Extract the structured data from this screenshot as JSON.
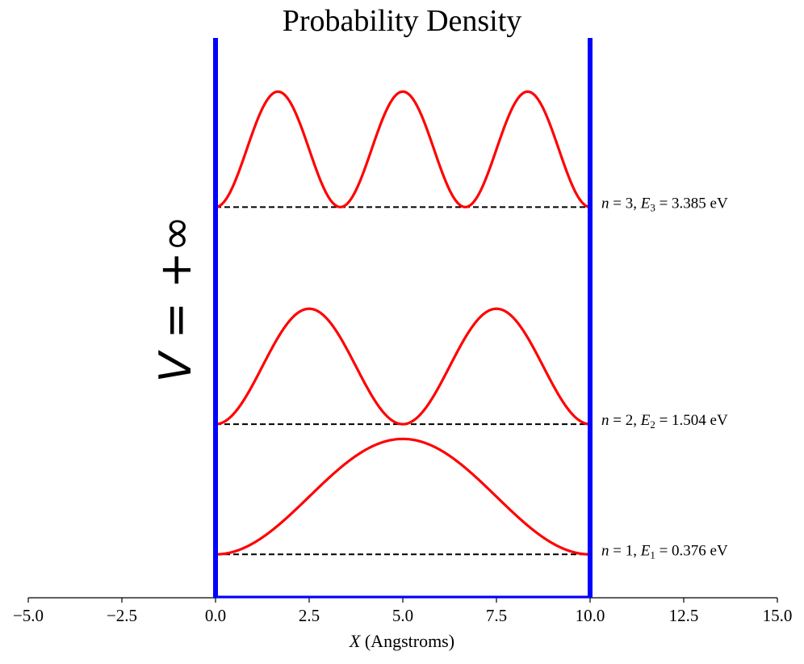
{
  "chart_data": {
    "type": "line",
    "title": "Probability Density",
    "xlabel_var": "X",
    "xlabel_unit": "(Angstroms)",
    "ylabel": "",
    "xlim": [
      -5,
      15
    ],
    "ylim": [
      0,
      4.85
    ],
    "xticks": [
      -5.0,
      -2.5,
      0.0,
      2.5,
      5.0,
      7.5,
      10.0,
      12.5,
      15.0
    ],
    "grid": false,
    "well": {
      "left": 0,
      "right": 10,
      "color": "#0000ff"
    },
    "potential_label": "V = +∞",
    "density_scale": 1.0,
    "curve_color": "#ff0000",
    "baseline_color": "#000000",
    "levels": [
      {
        "n": 1,
        "energy": 0.376,
        "unit": "eV"
      },
      {
        "n": 2,
        "energy": 1.504,
        "unit": "eV"
      },
      {
        "n": 3,
        "energy": 3.385,
        "unit": "eV"
      }
    ]
  }
}
